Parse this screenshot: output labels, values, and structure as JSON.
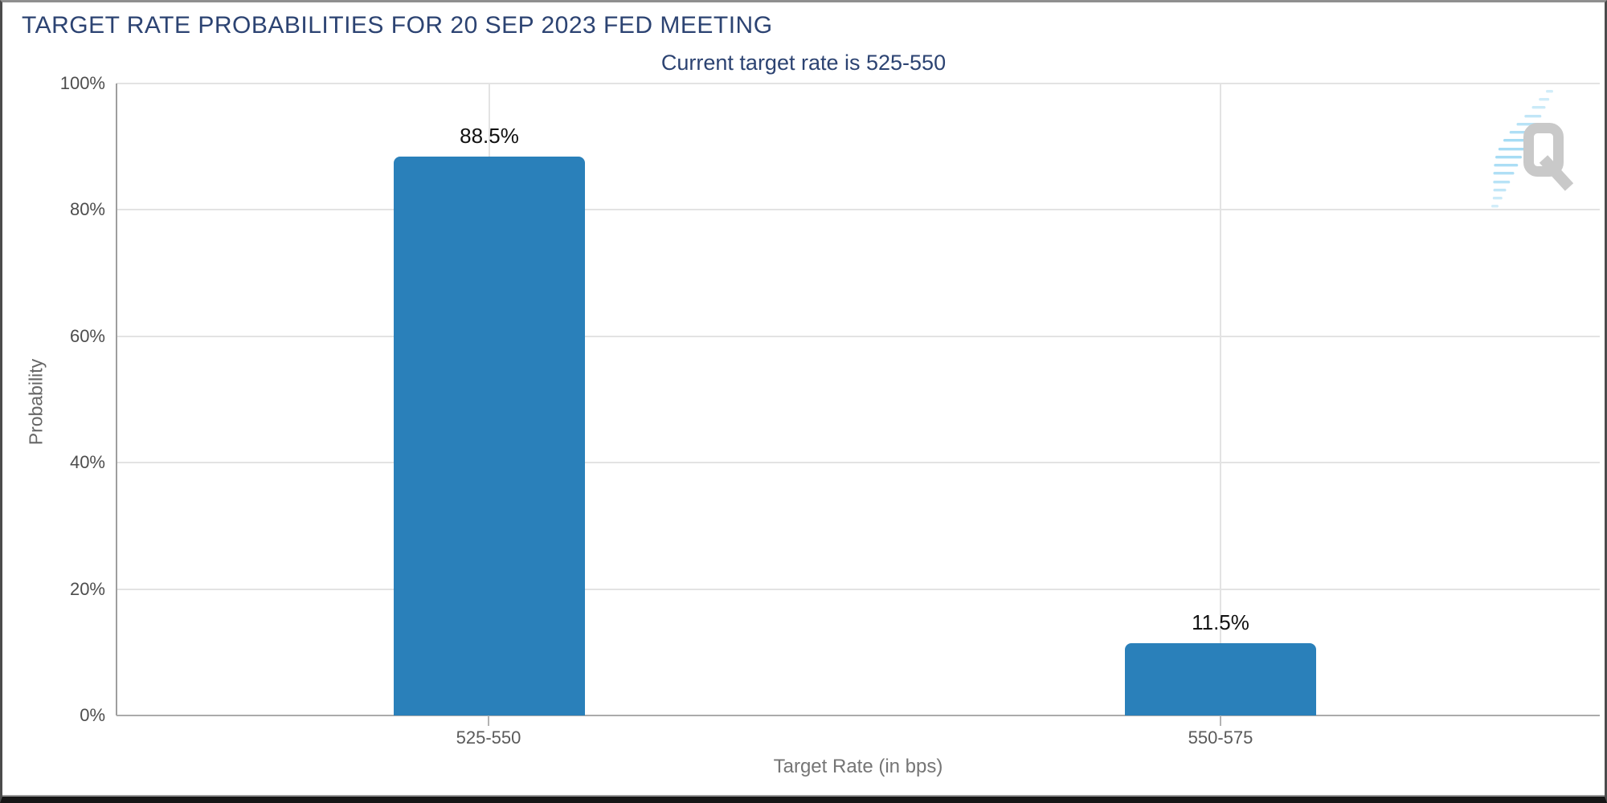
{
  "window_title": "TARGET RATE PROBABILITIES FOR 20 SEP 2023 FED MEETING",
  "chart_data": {
    "type": "bar",
    "title": "TARGET RATE PROBABILITIES FOR 20 SEP 2023 FED MEETING",
    "subtitle": "Current target rate is 525-550",
    "categories": [
      "525-550",
      "550-575"
    ],
    "values": [
      88.5,
      11.5
    ],
    "value_labels": [
      "88.5%",
      "11.5%"
    ],
    "xlabel": "Target Rate (in bps)",
    "ylabel": "Probability",
    "ylim": [
      0,
      100
    ],
    "ytick_labels": [
      "0%",
      "20%",
      "40%",
      "60%",
      "80%",
      "100%"
    ],
    "grid": true,
    "legend_position": "none",
    "bar_color": "#2a80ba"
  },
  "colors": {
    "title_navy": "#2c4372",
    "bar_blue": "#2a80ba",
    "gridline": "#e3e3e3",
    "axis_line": "#9e9e9e",
    "tick_label": "#4d4d4d",
    "axis_title": "#757575",
    "logo_gray": "#c9c9c9",
    "logo_blue": "#a6dcf4"
  },
  "logo": {
    "letter": "Q",
    "name": "quikstrike-watermark"
  }
}
